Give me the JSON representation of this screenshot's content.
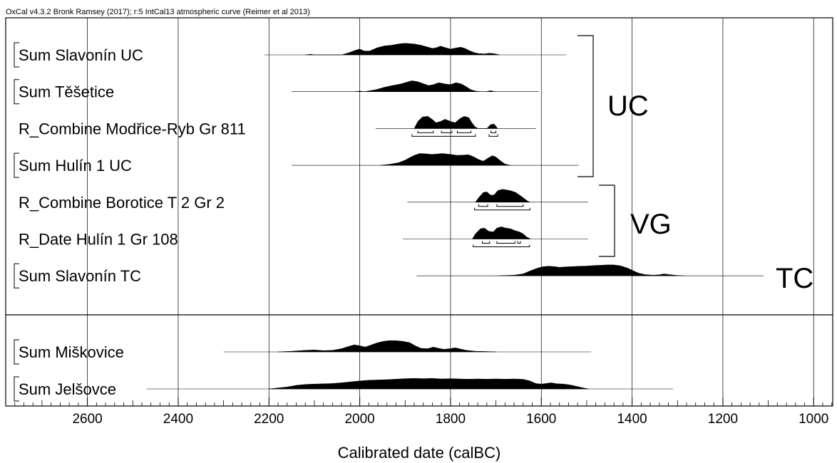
{
  "header": "OxCal v4.3.2 Bronk Ramsey (2017); r:5 IntCal13 atmospheric curve (Reimer et al 2013)",
  "chart_data": {
    "type": "area",
    "title": "",
    "xlabel": "Calibrated date (calBC)",
    "ylabel": "",
    "xlim": [
      2780,
      958
    ],
    "xaxis_reversed": true,
    "x_ticks": [
      2600,
      2400,
      2200,
      2000,
      1800,
      1600,
      1400,
      1200,
      1000
    ],
    "grid": true,
    "rows": [
      {
        "label": "Sum Slavonín  UC",
        "bracket": true,
        "panel": "top",
        "range": [
          2210,
          1545
        ],
        "profile": [
          [
            2120,
            0
          ],
          [
            2108,
            0.05
          ],
          [
            2100,
            0
          ],
          [
            2040,
            0
          ],
          [
            2025,
            0.15
          ],
          [
            2010,
            0.35
          ],
          [
            2000,
            0.45
          ],
          [
            1990,
            0.3
          ],
          [
            1978,
            0.3
          ],
          [
            1962,
            0.55
          ],
          [
            1945,
            0.7
          ],
          [
            1930,
            0.75
          ],
          [
            1915,
            0.85
          ],
          [
            1900,
            0.9
          ],
          [
            1880,
            0.85
          ],
          [
            1865,
            0.75
          ],
          [
            1852,
            0.62
          ],
          [
            1840,
            0.5
          ],
          [
            1832,
            0.55
          ],
          [
            1822,
            0.68
          ],
          [
            1810,
            0.55
          ],
          [
            1800,
            0.45
          ],
          [
            1790,
            0.52
          ],
          [
            1778,
            0.6
          ],
          [
            1768,
            0.5
          ],
          [
            1758,
            0.32
          ],
          [
            1748,
            0.18
          ],
          [
            1738,
            0.1
          ],
          [
            1725,
            0.08
          ],
          [
            1715,
            0.12
          ],
          [
            1705,
            0.1
          ],
          [
            1692,
            0
          ]
        ]
      },
      {
        "label": "Sum Těšetice",
        "bracket": true,
        "panel": "top",
        "range": [
          2150,
          1605
        ],
        "profile": [
          [
            2010,
            0
          ],
          [
            2000,
            0.05
          ],
          [
            1990,
            0
          ],
          [
            1965,
            0.15
          ],
          [
            1945,
            0.35
          ],
          [
            1925,
            0.5
          ],
          [
            1910,
            0.6
          ],
          [
            1898,
            0.72
          ],
          [
            1885,
            0.85
          ],
          [
            1872,
            0.78
          ],
          [
            1860,
            0.62
          ],
          [
            1848,
            0.48
          ],
          [
            1838,
            0.55
          ],
          [
            1826,
            0.7
          ],
          [
            1812,
            0.6
          ],
          [
            1800,
            0.55
          ],
          [
            1788,
            0.7
          ],
          [
            1776,
            0.6
          ],
          [
            1765,
            0.38
          ],
          [
            1755,
            0.15
          ],
          [
            1745,
            0.05
          ],
          [
            1735,
            0
          ],
          [
            1722,
            0
          ],
          [
            1712,
            0.08
          ],
          [
            1702,
            0
          ]
        ]
      },
      {
        "label": "R_Combine Modřice-Ryb Gr 811",
        "bracket": false,
        "panel": "top",
        "range": [
          1965,
          1612
        ],
        "profile": [
          [
            1880,
            0
          ],
          [
            1872,
            0.55
          ],
          [
            1862,
            0.9
          ],
          [
            1850,
            0.95
          ],
          [
            1840,
            0.7
          ],
          [
            1832,
            0.45
          ],
          [
            1822,
            0.55
          ],
          [
            1812,
            0.72
          ],
          [
            1800,
            0.55
          ],
          [
            1790,
            0.45
          ],
          [
            1780,
            0.75
          ],
          [
            1770,
            0.95
          ],
          [
            1760,
            0.85
          ],
          [
            1752,
            0.4
          ],
          [
            1745,
            0.1
          ],
          [
            1738,
            0
          ],
          [
            1720,
            0
          ],
          [
            1712,
            0.3
          ],
          [
            1704,
            0.35
          ],
          [
            1696,
            0
          ]
        ],
        "ranges_68": [
          [
            1872,
            1838
          ],
          [
            1820,
            1797
          ],
          [
            1785,
            1755
          ],
          [
            1711,
            1700
          ]
        ],
        "ranges_95": [
          [
            1885,
            1745
          ],
          [
            1715,
            1696
          ]
        ]
      },
      {
        "label": "Sum Hulín  1  UC",
        "bracket": true,
        "panel": "top",
        "range": [
          2150,
          1518
        ],
        "profile": [
          [
            1955,
            0
          ],
          [
            1935,
            0.08
          ],
          [
            1915,
            0.2
          ],
          [
            1900,
            0.4
          ],
          [
            1890,
            0.6
          ],
          [
            1880,
            0.78
          ],
          [
            1868,
            0.92
          ],
          [
            1855,
            0.9
          ],
          [
            1842,
            0.85
          ],
          [
            1830,
            0.88
          ],
          [
            1818,
            0.92
          ],
          [
            1800,
            0.85
          ],
          [
            1785,
            0.78
          ],
          [
            1772,
            0.8
          ],
          [
            1760,
            0.82
          ],
          [
            1748,
            0.65
          ],
          [
            1738,
            0.45
          ],
          [
            1728,
            0.32
          ],
          [
            1718,
            0.55
          ],
          [
            1708,
            0.75
          ],
          [
            1700,
            0.65
          ],
          [
            1690,
            0.35
          ],
          [
            1680,
            0.1
          ],
          [
            1668,
            0
          ]
        ]
      },
      {
        "label": "R_Combine Borotice T 2 Gr 2",
        "bracket": false,
        "panel": "top",
        "range": [
          1895,
          1497
        ],
        "profile": [
          [
            1745,
            0
          ],
          [
            1738,
            0.35
          ],
          [
            1728,
            0.75
          ],
          [
            1720,
            0.8
          ],
          [
            1712,
            0.55
          ],
          [
            1704,
            0.55
          ],
          [
            1696,
            0.9
          ],
          [
            1686,
            1.0
          ],
          [
            1676,
            0.95
          ],
          [
            1666,
            0.88
          ],
          [
            1656,
            0.75
          ],
          [
            1648,
            0.55
          ],
          [
            1640,
            0.35
          ],
          [
            1632,
            0.12
          ],
          [
            1625,
            0
          ]
        ],
        "ranges_68": [
          [
            1738,
            1718
          ],
          [
            1698,
            1640
          ]
        ],
        "ranges_95": [
          [
            1747,
            1625
          ]
        ]
      },
      {
        "label": "R_Date Hulín 1 Gr 108",
        "bracket": false,
        "panel": "top",
        "range": [
          1905,
          1497
        ],
        "profile": [
          [
            1752,
            0
          ],
          [
            1745,
            0.4
          ],
          [
            1734,
            0.8
          ],
          [
            1725,
            0.85
          ],
          [
            1716,
            0.6
          ],
          [
            1706,
            0.55
          ],
          [
            1698,
            0.85
          ],
          [
            1688,
            0.95
          ],
          [
            1678,
            0.85
          ],
          [
            1668,
            0.8
          ],
          [
            1658,
            0.65
          ],
          [
            1648,
            0.55
          ],
          [
            1640,
            0.4
          ],
          [
            1632,
            0.15
          ],
          [
            1624,
            0
          ]
        ],
        "ranges_68": [
          [
            1730,
            1714
          ],
          [
            1698,
            1658
          ],
          [
            1652,
            1646
          ]
        ],
        "ranges_95": [
          [
            1750,
            1626
          ]
        ]
      },
      {
        "label": "Sum Slavonín  TC",
        "bracket": true,
        "panel": "top",
        "range": [
          1875,
          1110
        ],
        "profile": [
          [
            1700,
            0
          ],
          [
            1680,
            0.03
          ],
          [
            1660,
            0.05
          ],
          [
            1640,
            0.15
          ],
          [
            1625,
            0.38
          ],
          [
            1610,
            0.58
          ],
          [
            1598,
            0.7
          ],
          [
            1585,
            0.75
          ],
          [
            1572,
            0.72
          ],
          [
            1560,
            0.66
          ],
          [
            1545,
            0.7
          ],
          [
            1530,
            0.72
          ],
          [
            1515,
            0.75
          ],
          [
            1500,
            0.76
          ],
          [
            1485,
            0.8
          ],
          [
            1470,
            0.82
          ],
          [
            1455,
            0.85
          ],
          [
            1440,
            0.85
          ],
          [
            1425,
            0.78
          ],
          [
            1410,
            0.6
          ],
          [
            1398,
            0.4
          ],
          [
            1385,
            0.2
          ],
          [
            1372,
            0.1
          ],
          [
            1355,
            0.05
          ],
          [
            1340,
            0.08
          ],
          [
            1330,
            0.15
          ],
          [
            1320,
            0.1
          ],
          [
            1300,
            0.03
          ],
          [
            1280,
            0
          ]
        ]
      },
      {
        "label": "Sum Miškovice",
        "bracket": true,
        "panel": "bottom",
        "range": [
          2300,
          1490
        ],
        "profile": [
          [
            2180,
            0
          ],
          [
            2150,
            0.05
          ],
          [
            2120,
            0.12
          ],
          [
            2100,
            0.15
          ],
          [
            2080,
            0.1
          ],
          [
            2060,
            0.12
          ],
          [
            2040,
            0.25
          ],
          [
            2025,
            0.42
          ],
          [
            2012,
            0.55
          ],
          [
            2000,
            0.48
          ],
          [
            1988,
            0.38
          ],
          [
            1978,
            0.5
          ],
          [
            1962,
            0.7
          ],
          [
            1948,
            0.82
          ],
          [
            1935,
            0.88
          ],
          [
            1920,
            0.88
          ],
          [
            1905,
            0.82
          ],
          [
            1890,
            0.72
          ],
          [
            1878,
            0.48
          ],
          [
            1865,
            0.28
          ],
          [
            1850,
            0.25
          ],
          [
            1838,
            0.38
          ],
          [
            1826,
            0.28
          ],
          [
            1815,
            0.2
          ],
          [
            1800,
            0.25
          ],
          [
            1790,
            0.32
          ],
          [
            1778,
            0.22
          ],
          [
            1765,
            0.12
          ],
          [
            1745,
            0.05
          ],
          [
            1720,
            0.03
          ],
          [
            1700,
            0
          ]
        ]
      },
      {
        "label": "Sum Jelšovce",
        "bracket": true,
        "panel": "bottom",
        "range": [
          2470,
          1310
        ],
        "profile": [
          [
            2200,
            0
          ],
          [
            2180,
            0.08
          ],
          [
            2160,
            0.15
          ],
          [
            2140,
            0.28
          ],
          [
            2120,
            0.35
          ],
          [
            2100,
            0.38
          ],
          [
            2080,
            0.4
          ],
          [
            2060,
            0.42
          ],
          [
            2040,
            0.48
          ],
          [
            2020,
            0.55
          ],
          [
            2000,
            0.62
          ],
          [
            1980,
            0.68
          ],
          [
            1960,
            0.7
          ],
          [
            1940,
            0.72
          ],
          [
            1920,
            0.76
          ],
          [
            1900,
            0.8
          ],
          [
            1880,
            0.82
          ],
          [
            1860,
            0.8
          ],
          [
            1840,
            0.82
          ],
          [
            1820,
            0.78
          ],
          [
            1800,
            0.8
          ],
          [
            1780,
            0.78
          ],
          [
            1760,
            0.76
          ],
          [
            1740,
            0.78
          ],
          [
            1720,
            0.76
          ],
          [
            1700,
            0.78
          ],
          [
            1680,
            0.76
          ],
          [
            1660,
            0.78
          ],
          [
            1640,
            0.75
          ],
          [
            1625,
            0.62
          ],
          [
            1612,
            0.42
          ],
          [
            1600,
            0.38
          ],
          [
            1590,
            0.42
          ],
          [
            1578,
            0.48
          ],
          [
            1565,
            0.4
          ],
          [
            1550,
            0.38
          ],
          [
            1535,
            0.3
          ],
          [
            1520,
            0.18
          ],
          [
            1505,
            0.06
          ],
          [
            1495,
            0
          ]
        ]
      }
    ],
    "groups": [
      {
        "label": "UC",
        "rows": [
          0,
          3
        ]
      },
      {
        "label": "VG",
        "rows": [
          4,
          6
        ]
      },
      {
        "label": "TC",
        "rows": []
      }
    ]
  }
}
